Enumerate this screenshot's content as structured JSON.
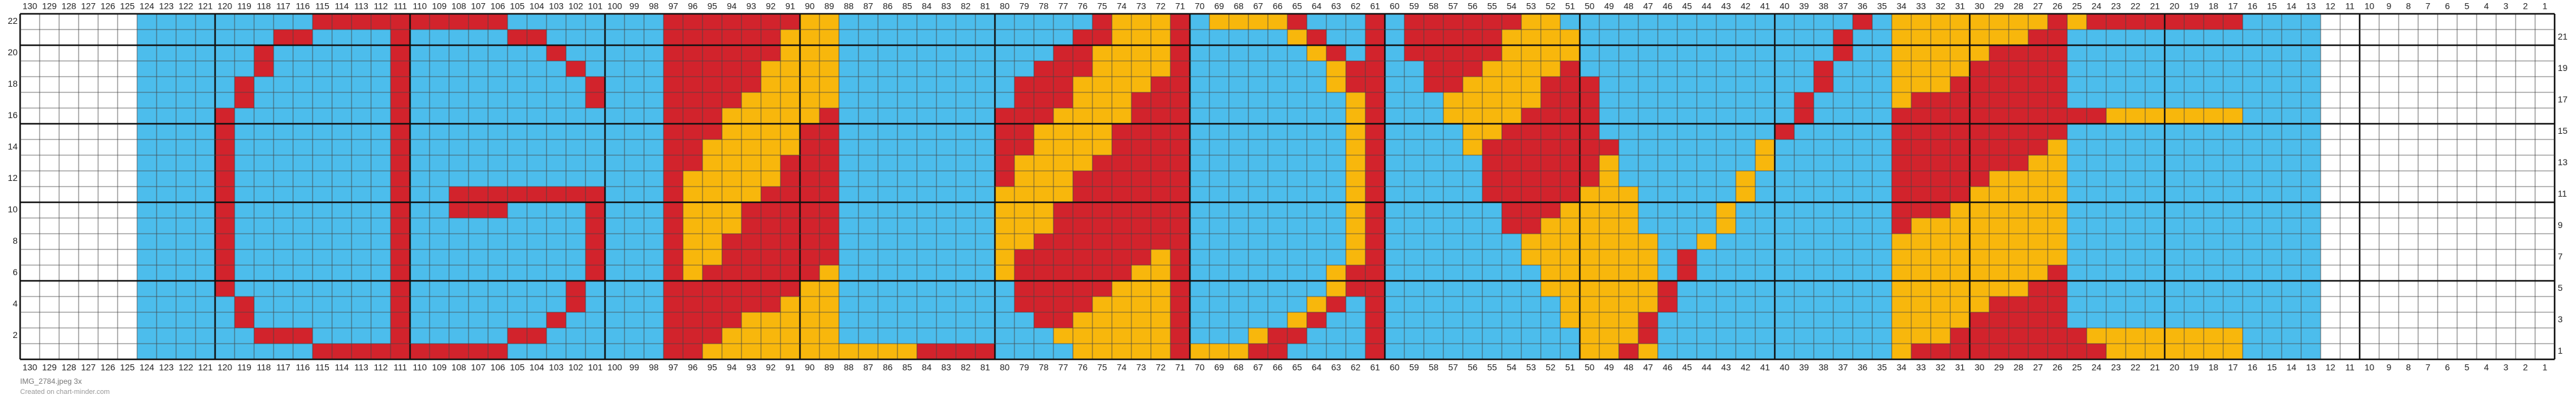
{
  "top_axis": {
    "columns": [
      130,
      129,
      128,
      127,
      126,
      125,
      124,
      123,
      122,
      121,
      120,
      119,
      118,
      117,
      116,
      115,
      114,
      113,
      112,
      111,
      110,
      109,
      108,
      107,
      106,
      105,
      104,
      103,
      102,
      101,
      100,
      99,
      98,
      97,
      96,
      95,
      94,
      93,
      92,
      91,
      90,
      89,
      88,
      87,
      86,
      85,
      84,
      83,
      82,
      81,
      80,
      79,
      78,
      77,
      76,
      75,
      74,
      73,
      72,
      71,
      70,
      69,
      68,
      67,
      66,
      65,
      64,
      63,
      62,
      61,
      60,
      59,
      58,
      57,
      56,
      55,
      54,
      53,
      52,
      51,
      50,
      49,
      48,
      47,
      46,
      45,
      44,
      43,
      42,
      41,
      40,
      39,
      38,
      37,
      36,
      35,
      34,
      33,
      32,
      31,
      30,
      29,
      28,
      27,
      26,
      25,
      24,
      23,
      22,
      21,
      20,
      19,
      18,
      17,
      16,
      15,
      14,
      13,
      12,
      11,
      10,
      9,
      8,
      7,
      6,
      5,
      4,
      3,
      2,
      1
    ]
  },
  "left_axis": {
    "rows": [
      22,
      20,
      18,
      16,
      14,
      12,
      10,
      8,
      6,
      4,
      2
    ]
  },
  "right_axis": {
    "rows": [
      21,
      19,
      17,
      15,
      13,
      11,
      9,
      7,
      5,
      3,
      1
    ]
  },
  "bottom_axis": {
    "columns": [
      130,
      129,
      128,
      127,
      126,
      125,
      124,
      123,
      122,
      121,
      120,
      119,
      118,
      117,
      116,
      115,
      114,
      113,
      112,
      111,
      110,
      109,
      108,
      107,
      106,
      105,
      104,
      103,
      102,
      101,
      100,
      99,
      98,
      97,
      96,
      95,
      94,
      93,
      92,
      91,
      90,
      89,
      88,
      87,
      86,
      85,
      84,
      83,
      82,
      81,
      80,
      79,
      78,
      77,
      76,
      75,
      74,
      73,
      72,
      71,
      70,
      69,
      68,
      67,
      66,
      65,
      64,
      63,
      62,
      61,
      60,
      59,
      58,
      57,
      56,
      55,
      54,
      53,
      52,
      51,
      50,
      49,
      48,
      47,
      46,
      45,
      44,
      43,
      42,
      41,
      40,
      39,
      38,
      37,
      36,
      35,
      34,
      33,
      32,
      31,
      30,
      29,
      28,
      27,
      26,
      25,
      24,
      23,
      22,
      21,
      20,
      19,
      18,
      17,
      16,
      15,
      14,
      13,
      12,
      11,
      10,
      9,
      8,
      7,
      6,
      5,
      4,
      3,
      2,
      1
    ]
  },
  "footer": {
    "filename": "IMG_2784.jpeg 3x",
    "credit": "Created on chart-minder.com"
  }
}
